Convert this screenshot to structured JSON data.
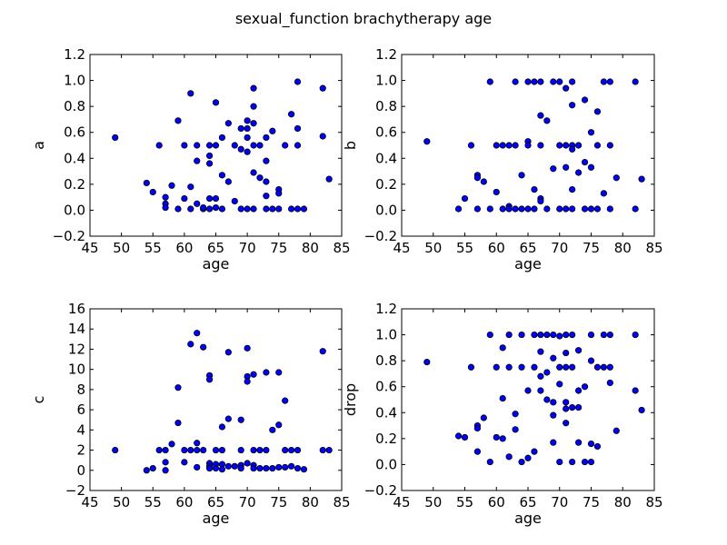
{
  "figure_title": "sexual_function brachytherapy age",
  "chart_data": [
    {
      "type": "scatter",
      "xlabel": "age",
      "ylabel": "a",
      "xlim": [
        45,
        85
      ],
      "ylim": [
        -0.2,
        1.2
      ],
      "xticks": [
        "45",
        "50",
        "55",
        "60",
        "65",
        "70",
        "75",
        "80",
        "85"
      ],
      "yticks": [
        "−0.2",
        "0.0",
        "0.2",
        "0.4",
        "0.6",
        "0.8",
        "1.0",
        "1.2"
      ],
      "points": [
        [
          49,
          0.56
        ],
        [
          54,
          0.21
        ],
        [
          55,
          0.14
        ],
        [
          56,
          0.5
        ],
        [
          57,
          0.1
        ],
        [
          57,
          0.05
        ],
        [
          57,
          0.02
        ],
        [
          58,
          0.19
        ],
        [
          59,
          0.69
        ],
        [
          59,
          0.01
        ],
        [
          60,
          0.5
        ],
        [
          60,
          0.09
        ],
        [
          61,
          0.9
        ],
        [
          61,
          0.18
        ],
        [
          61,
          0.01
        ],
        [
          62,
          0.5
        ],
        [
          62,
          0.38
        ],
        [
          62,
          0.05
        ],
        [
          63,
          0.01
        ],
        [
          63,
          0.02
        ],
        [
          64,
          0.5
        ],
        [
          64,
          0.42
        ],
        [
          64,
          0.36
        ],
        [
          64,
          0.09
        ],
        [
          64,
          0.01
        ],
        [
          65,
          0.83
        ],
        [
          65,
          0.5
        ],
        [
          65,
          0.09
        ],
        [
          65,
          0.02
        ],
        [
          66,
          0.56
        ],
        [
          66,
          0.27
        ],
        [
          66,
          0.01
        ],
        [
          67,
          0.67
        ],
        [
          67,
          0.22
        ],
        [
          68,
          0.5
        ],
        [
          68,
          0.07
        ],
        [
          69,
          0.63
        ],
        [
          69,
          0.47
        ],
        [
          69,
          0.01
        ],
        [
          70,
          0.69
        ],
        [
          70,
          0.63
        ],
        [
          70,
          0.56
        ],
        [
          70,
          0.45
        ],
        [
          70,
          0.01
        ],
        [
          71,
          0.94
        ],
        [
          71,
          0.8
        ],
        [
          71,
          0.67
        ],
        [
          71,
          0.5
        ],
        [
          71,
          0.29
        ],
        [
          71,
          0.01
        ],
        [
          72,
          0.5
        ],
        [
          72,
          0.25
        ],
        [
          73,
          0.56
        ],
        [
          73,
          0.38
        ],
        [
          73,
          0.22
        ],
        [
          73,
          0.11
        ],
        [
          73,
          0.01
        ],
        [
          74,
          0.61
        ],
        [
          74,
          0.01
        ],
        [
          75,
          0.16
        ],
        [
          75,
          0.13
        ],
        [
          75,
          0.01
        ],
        [
          76,
          0.5
        ],
        [
          77,
          0.74
        ],
        [
          77,
          0.01
        ],
        [
          78,
          0.99
        ],
        [
          78,
          0.63
        ],
        [
          78,
          0.5
        ],
        [
          78,
          0.01
        ],
        [
          79,
          0.01
        ],
        [
          82,
          0.94
        ],
        [
          82,
          0.57
        ],
        [
          83,
          0.24
        ]
      ]
    },
    {
      "type": "scatter",
      "xlabel": "age",
      "ylabel": "b",
      "xlim": [
        45,
        85
      ],
      "ylim": [
        -0.2,
        1.2
      ],
      "xticks": [
        "45",
        "50",
        "55",
        "60",
        "65",
        "70",
        "75",
        "80",
        "85"
      ],
      "yticks": [
        "−0.2",
        "0.0",
        "0.2",
        "0.4",
        "0.6",
        "0.8",
        "1.0",
        "1.2"
      ],
      "points": [
        [
          49,
          0.53
        ],
        [
          54,
          0.01
        ],
        [
          55,
          0.09
        ],
        [
          56,
          0.5
        ],
        [
          57,
          0.27
        ],
        [
          57,
          0.25
        ],
        [
          57,
          0.01
        ],
        [
          58,
          0.22
        ],
        [
          59,
          0.99
        ],
        [
          59,
          0.01
        ],
        [
          60,
          0.5
        ],
        [
          60,
          0.14
        ],
        [
          61,
          0.5
        ],
        [
          61,
          0.01
        ],
        [
          62,
          0.5
        ],
        [
          62,
          0.03
        ],
        [
          62,
          0.01
        ],
        [
          63,
          0.99
        ],
        [
          63,
          0.5
        ],
        [
          63,
          0.01
        ],
        [
          64,
          0.27
        ],
        [
          64,
          0.01
        ],
        [
          65,
          0.99
        ],
        [
          65,
          0.53
        ],
        [
          65,
          0.5
        ],
        [
          65,
          0.01
        ],
        [
          66,
          0.99
        ],
        [
          66,
          0.16
        ],
        [
          66,
          0.01
        ],
        [
          67,
          0.99
        ],
        [
          67,
          0.73
        ],
        [
          67,
          0.5
        ],
        [
          67,
          0.09
        ],
        [
          67,
          0.07
        ],
        [
          68,
          0.69
        ],
        [
          68,
          0.01
        ],
        [
          69,
          0.99
        ],
        [
          69,
          0.32
        ],
        [
          70,
          0.99
        ],
        [
          70,
          0.5
        ],
        [
          70,
          0.01
        ],
        [
          71,
          0.94
        ],
        [
          71,
          0.5
        ],
        [
          71,
          0.33
        ],
        [
          71,
          0.01
        ],
        [
          72,
          0.99
        ],
        [
          72,
          0.81
        ],
        [
          72,
          0.5
        ],
        [
          72,
          0.47
        ],
        [
          72,
          0.16
        ],
        [
          72,
          0.01
        ],
        [
          73,
          0.5
        ],
        [
          73,
          0.29
        ],
        [
          74,
          0.85
        ],
        [
          74,
          0.37
        ],
        [
          74,
          0.01
        ],
        [
          75,
          0.6
        ],
        [
          75,
          0.33
        ],
        [
          75,
          0.01
        ],
        [
          76,
          0.76
        ],
        [
          76,
          0.5
        ],
        [
          76,
          0.01
        ],
        [
          77,
          0.99
        ],
        [
          77,
          0.13
        ],
        [
          78,
          0.99
        ],
        [
          78,
          0.5
        ],
        [
          78,
          0.01
        ],
        [
          79,
          0.25
        ],
        [
          82,
          0.99
        ],
        [
          82,
          0.01
        ],
        [
          83,
          0.24
        ]
      ]
    },
    {
      "type": "scatter",
      "xlabel": "age",
      "ylabel": "c",
      "xlim": [
        45,
        85
      ],
      "ylim": [
        -2,
        16
      ],
      "xticks": [
        "45",
        "50",
        "55",
        "60",
        "65",
        "70",
        "75",
        "80",
        "85"
      ],
      "yticks": [
        "−2",
        "0",
        "2",
        "4",
        "6",
        "8",
        "10",
        "12",
        "14",
        "16"
      ],
      "points": [
        [
          49,
          2
        ],
        [
          54,
          0
        ],
        [
          55,
          0.2
        ],
        [
          56,
          2
        ],
        [
          57,
          2
        ],
        [
          57,
          0.8
        ],
        [
          57,
          0
        ],
        [
          58,
          2.6
        ],
        [
          59,
          8.2
        ],
        [
          59,
          4.7
        ],
        [
          60,
          2
        ],
        [
          60,
          0.8
        ],
        [
          61,
          12.5
        ],
        [
          61,
          2
        ],
        [
          62,
          13.6
        ],
        [
          62,
          2.7
        ],
        [
          62,
          2
        ],
        [
          62,
          0.3
        ],
        [
          63,
          12.2
        ],
        [
          63,
          2
        ],
        [
          64,
          9.4
        ],
        [
          64,
          9
        ],
        [
          64,
          0.7
        ],
        [
          64,
          0.4
        ],
        [
          64,
          0.2
        ],
        [
          65,
          2
        ],
        [
          65,
          0.6
        ],
        [
          65,
          0.2
        ],
        [
          66,
          4.3
        ],
        [
          66,
          2
        ],
        [
          66,
          0.6
        ],
        [
          66,
          0.1
        ],
        [
          67,
          11.7
        ],
        [
          67,
          5.1
        ],
        [
          67,
          0.4
        ],
        [
          68,
          0.4
        ],
        [
          69,
          5
        ],
        [
          69,
          2
        ],
        [
          69,
          0.5
        ],
        [
          69,
          0.2
        ],
        [
          70,
          12.1
        ],
        [
          70,
          9.3
        ],
        [
          70,
          8.8
        ],
        [
          70,
          0.7
        ],
        [
          71,
          9.5
        ],
        [
          71,
          2
        ],
        [
          71,
          0.5
        ],
        [
          71,
          0.2
        ],
        [
          72,
          2
        ],
        [
          72,
          0.2
        ],
        [
          73,
          9.7
        ],
        [
          73,
          2
        ],
        [
          73,
          0.2
        ],
        [
          74,
          4
        ],
        [
          74,
          0.2
        ],
        [
          75,
          9.7
        ],
        [
          75,
          4.5
        ],
        [
          75,
          0.3
        ],
        [
          76,
          6.9
        ],
        [
          76,
          2
        ],
        [
          76,
          0.3
        ],
        [
          77,
          2
        ],
        [
          77,
          0.4
        ],
        [
          78,
          2
        ],
        [
          78,
          0.2
        ],
        [
          79,
          0.1
        ],
        [
          82,
          11.8
        ],
        [
          82,
          2
        ],
        [
          83,
          2
        ]
      ]
    },
    {
      "type": "scatter",
      "xlabel": "age",
      "ylabel": "drop",
      "xlim": [
        45,
        85
      ],
      "ylim": [
        -0.2,
        1.2
      ],
      "xticks": [
        "45",
        "50",
        "55",
        "60",
        "65",
        "70",
        "75",
        "80",
        "85"
      ],
      "yticks": [
        "−0.2",
        "0.0",
        "0.2",
        "0.4",
        "0.6",
        "0.8",
        "1.0",
        "1.2"
      ],
      "points": [
        [
          49,
          0.79
        ],
        [
          54,
          0.22
        ],
        [
          55,
          0.21
        ],
        [
          56,
          0.75
        ],
        [
          57,
          0.3
        ],
        [
          57,
          0.28
        ],
        [
          57,
          0.1
        ],
        [
          58,
          0.36
        ],
        [
          59,
          1
        ],
        [
          59,
          0.02
        ],
        [
          60,
          0.75
        ],
        [
          60,
          0.21
        ],
        [
          61,
          0.9
        ],
        [
          61,
          0.51
        ],
        [
          61,
          0.2
        ],
        [
          62,
          1
        ],
        [
          62,
          0.75
        ],
        [
          62,
          0.06
        ],
        [
          63,
          0.39
        ],
        [
          63,
          0.27
        ],
        [
          64,
          1
        ],
        [
          64,
          0.75
        ],
        [
          64,
          0.02
        ],
        [
          65,
          0.57
        ],
        [
          65,
          0.05
        ],
        [
          66,
          1
        ],
        [
          66,
          0.75
        ],
        [
          66,
          0.1
        ],
        [
          67,
          1
        ],
        [
          67,
          0.87
        ],
        [
          67,
          0.68
        ],
        [
          67,
          0.57
        ],
        [
          68,
          1
        ],
        [
          68,
          0.71
        ],
        [
          68,
          0.5
        ],
        [
          69,
          1
        ],
        [
          69,
          0.82
        ],
        [
          69,
          0.48
        ],
        [
          69,
          0.38
        ],
        [
          69,
          0.17
        ],
        [
          70,
          0.99
        ],
        [
          70,
          0.75
        ],
        [
          70,
          0.62
        ],
        [
          70,
          0.02
        ],
        [
          71,
          1
        ],
        [
          71,
          0.86
        ],
        [
          71,
          0.75
        ],
        [
          71,
          0.48
        ],
        [
          71,
          0.43
        ],
        [
          71,
          0.32
        ],
        [
          72,
          1
        ],
        [
          72,
          0.75
        ],
        [
          72,
          0.44
        ],
        [
          72,
          0.02
        ],
        [
          73,
          0.88
        ],
        [
          73,
          0.57
        ],
        [
          73,
          0.44
        ],
        [
          73,
          0.17
        ],
        [
          74,
          0.6
        ],
        [
          74,
          0.02
        ],
        [
          75,
          1
        ],
        [
          75,
          0.8
        ],
        [
          75,
          0.16
        ],
        [
          75,
          0.02
        ],
        [
          76,
          0.75
        ],
        [
          76,
          0.14
        ],
        [
          77,
          1
        ],
        [
          77,
          0.75
        ],
        [
          78,
          1
        ],
        [
          78,
          0.75
        ],
        [
          78,
          0.63
        ],
        [
          79,
          0.26
        ],
        [
          82,
          1
        ],
        [
          82,
          0.57
        ],
        [
          83,
          0.42
        ]
      ]
    }
  ]
}
